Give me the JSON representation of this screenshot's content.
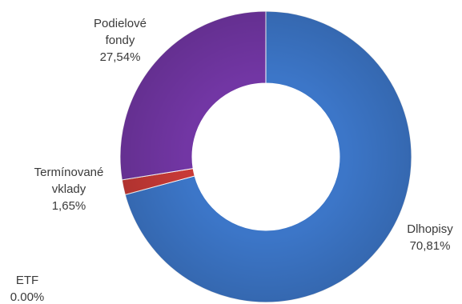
{
  "chart_data": {
    "type": "pie",
    "variant": "donut",
    "slices": [
      {
        "category": "Dlhopisy",
        "value": 70.81,
        "label_lines": [
          "Dlhopisy",
          "70,81%"
        ],
        "color": "#3c76c8"
      },
      {
        "category": "Termínované vklady",
        "value": 1.65,
        "label_lines": [
          "Termínované",
          "vklady",
          "1,65%"
        ],
        "color": "#c83a36"
      },
      {
        "category": "Podielové fondy",
        "value": 27.54,
        "label_lines": [
          "Podielové",
          "fondy",
          "27,54%"
        ],
        "color": "#7236a4"
      },
      {
        "category": "ETF",
        "value": 0.0,
        "label_lines": [
          "ETF",
          "0.00%"
        ],
        "color": "#8db33e"
      }
    ],
    "start_angle": "12 o'clock",
    "direction": "clockwise",
    "legend": "none",
    "title": ""
  }
}
